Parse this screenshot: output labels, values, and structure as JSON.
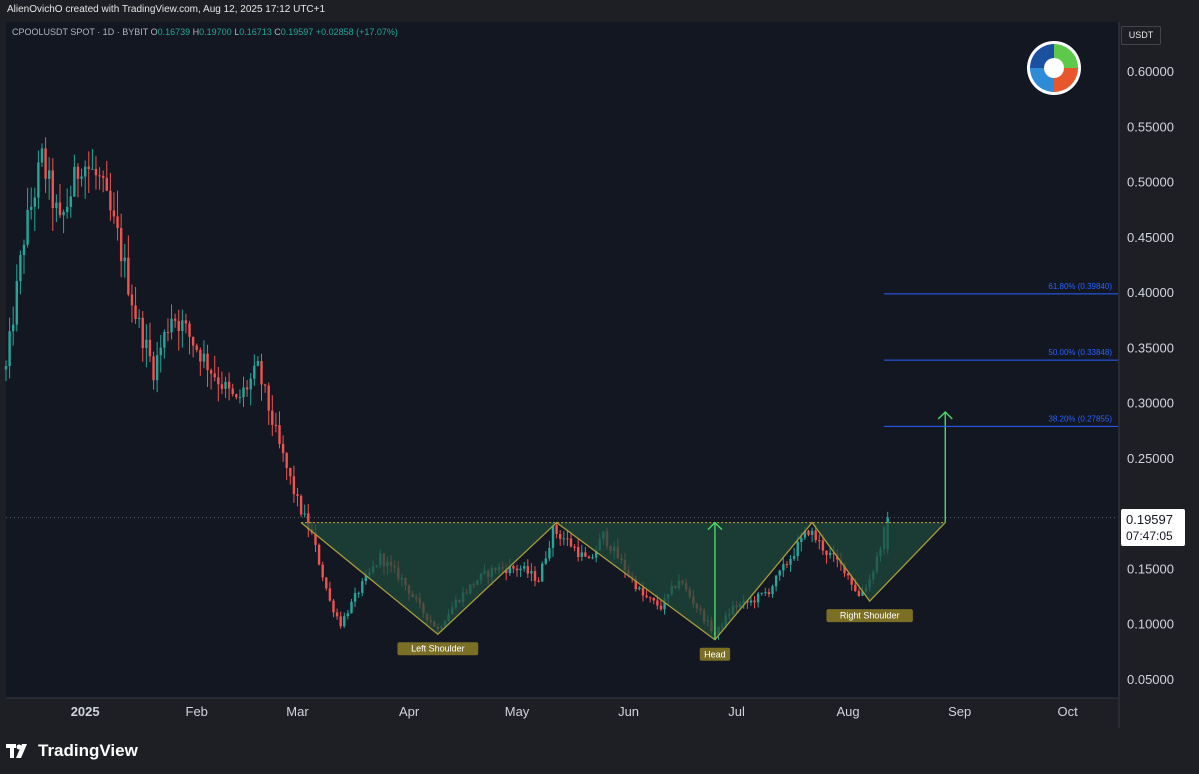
{
  "header": {
    "credit": "AlienOvichO created with TradingView.com, Aug 12, 2025 17:12 UTC+1",
    "symbol": "CPOOLUSDT SPOT · 1D · BYBIT",
    "o_label": "O",
    "o_value": "0.16739",
    "h_label": "H",
    "h_value": "0.19700",
    "l_label": "L",
    "l_value": "0.16713",
    "c_label": "C",
    "c_value": "0.19597",
    "change": "+0.02858 (+17.07%)"
  },
  "price_axis": {
    "currency": "USDT",
    "last_price": "0.19597",
    "countdown": "07:47:05"
  },
  "footer": {
    "brand": "TradingView"
  },
  "colors": {
    "background": "#131722",
    "up": "#26a69a",
    "down": "#ef5350",
    "pattern_line": "#a89a3c",
    "pattern_fill": "#1f4a3c",
    "fib_line": "#2962ff",
    "target_arrow": "#4cd964"
  },
  "chart_data": {
    "type": "candlestick",
    "interval": "1D",
    "ylim": [
      0.03,
      0.63
    ],
    "y_ticks": [
      "0.60000",
      "0.55000",
      "0.50000",
      "0.45000",
      "0.40000",
      "0.35000",
      "0.30000",
      "0.25000",
      "0.15000",
      "0.10000",
      "0.05000"
    ],
    "y_tick_values": [
      0.6,
      0.55,
      0.5,
      0.45,
      0.4,
      0.35,
      0.3,
      0.25,
      0.15,
      0.1,
      0.05
    ],
    "x_ticks": [
      {
        "label": "2025",
        "date": "2025-01-01"
      },
      {
        "label": "Feb",
        "date": "2025-02-01"
      },
      {
        "label": "Mar",
        "date": "2025-03-01"
      },
      {
        "label": "Apr",
        "date": "2025-04-01"
      },
      {
        "label": "May",
        "date": "2025-05-01"
      },
      {
        "label": "Jun",
        "date": "2025-06-01"
      },
      {
        "label": "Jul",
        "date": "2025-07-01"
      },
      {
        "label": "Aug",
        "date": "2025-08-01"
      },
      {
        "label": "Sep",
        "date": "2025-09-01"
      },
      {
        "label": "Oct",
        "date": "2025-10-01"
      }
    ],
    "x_range": [
      "2024-12-10",
      "2025-10-15"
    ],
    "close_path": [
      {
        "date": "2024-12-10",
        "close": 0.33
      },
      {
        "date": "2024-12-15",
        "close": 0.45
      },
      {
        "date": "2024-12-20",
        "close": 0.52
      },
      {
        "date": "2024-12-25",
        "close": 0.46
      },
      {
        "date": "2024-12-31",
        "close": 0.52
      },
      {
        "date": "2025-01-05",
        "close": 0.5
      },
      {
        "date": "2025-01-10",
        "close": 0.45
      },
      {
        "date": "2025-01-15",
        "close": 0.38
      },
      {
        "date": "2025-01-20",
        "close": 0.33
      },
      {
        "date": "2025-01-25",
        "close": 0.38
      },
      {
        "date": "2025-01-28",
        "close": 0.37
      },
      {
        "date": "2025-02-05",
        "close": 0.33
      },
      {
        "date": "2025-02-12",
        "close": 0.3
      },
      {
        "date": "2025-02-18",
        "close": 0.33
      },
      {
        "date": "2025-02-24",
        "close": 0.26
      },
      {
        "date": "2025-03-01",
        "close": 0.21
      },
      {
        "date": "2025-03-05",
        "close": 0.18
      },
      {
        "date": "2025-03-10",
        "close": 0.12
      },
      {
        "date": "2025-03-13",
        "close": 0.1
      },
      {
        "date": "2025-03-18",
        "close": 0.13
      },
      {
        "date": "2025-03-24",
        "close": 0.16
      },
      {
        "date": "2025-03-30",
        "close": 0.14
      },
      {
        "date": "2025-04-05",
        "close": 0.11
      },
      {
        "date": "2025-04-09",
        "close": 0.095
      },
      {
        "date": "2025-04-14",
        "close": 0.12
      },
      {
        "date": "2025-04-20",
        "close": 0.14
      },
      {
        "date": "2025-04-25",
        "close": 0.15
      },
      {
        "date": "2025-05-02",
        "close": 0.15
      },
      {
        "date": "2025-05-07",
        "close": 0.14
      },
      {
        "date": "2025-05-11",
        "close": 0.185
      },
      {
        "date": "2025-05-15",
        "close": 0.175
      },
      {
        "date": "2025-05-21",
        "close": 0.155
      },
      {
        "date": "2025-05-25",
        "close": 0.18
      },
      {
        "date": "2025-05-30",
        "close": 0.155
      },
      {
        "date": "2025-06-05",
        "close": 0.125
      },
      {
        "date": "2025-06-10",
        "close": 0.115
      },
      {
        "date": "2025-06-15",
        "close": 0.14
      },
      {
        "date": "2025-06-20",
        "close": 0.115
      },
      {
        "date": "2025-06-25",
        "close": 0.09
      },
      {
        "date": "2025-06-30",
        "close": 0.115
      },
      {
        "date": "2025-07-05",
        "close": 0.12
      },
      {
        "date": "2025-07-10",
        "close": 0.13
      },
      {
        "date": "2025-07-16",
        "close": 0.16
      },
      {
        "date": "2025-07-21",
        "close": 0.185
      },
      {
        "date": "2025-07-26",
        "close": 0.165
      },
      {
        "date": "2025-07-31",
        "close": 0.15
      },
      {
        "date": "2025-08-04",
        "close": 0.125
      },
      {
        "date": "2025-08-07",
        "close": 0.14
      },
      {
        "date": "2025-08-10",
        "close": 0.17
      },
      {
        "date": "2025-08-12",
        "close": 0.196
      }
    ],
    "pattern": {
      "name": "Inverse Head and Shoulders",
      "neckline": 0.1915,
      "points": [
        {
          "label": "",
          "date": "2025-03-02",
          "price": 0.1915
        },
        {
          "label": "Left Shoulder",
          "date": "2025-04-09",
          "price": 0.0905
        },
        {
          "label": "",
          "date": "2025-05-12",
          "price": 0.1915
        },
        {
          "label": "Head",
          "date": "2025-06-25",
          "price": 0.0855
        },
        {
          "label": "",
          "date": "2025-07-22",
          "price": 0.1915
        },
        {
          "label": "Right Shoulder",
          "date": "2025-08-07",
          "price": 0.1205
        },
        {
          "label": "",
          "date": "2025-08-28",
          "price": 0.1915
        }
      ]
    },
    "fib_levels": [
      {
        "label": "61.80% (0.39840)",
        "price": 0.3984
      },
      {
        "label": "50.00% (0.33848)",
        "price": 0.33848
      },
      {
        "label": "38.20% (0.27855)",
        "price": 0.27855
      }
    ],
    "head_arrow": {
      "date": "2025-06-25",
      "from": 0.0855,
      "to": 0.1915
    },
    "target_arrow": {
      "date": "2025-08-28",
      "from": 0.1915,
      "to": 0.2915
    },
    "last_price": 0.19597
  }
}
